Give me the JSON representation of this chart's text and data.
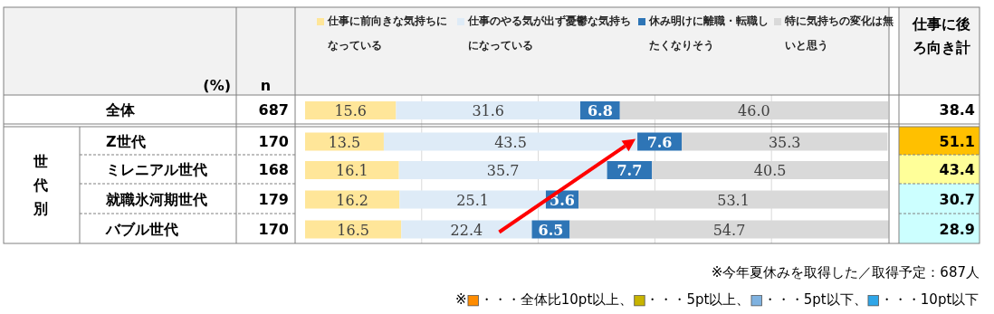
{
  "chart_data": {
    "type": "bar",
    "orientation": "horizontal",
    "stacked": true,
    "categories": [
      "全体",
      "Z世代",
      "ミレニアル世代",
      "就職氷河期世代",
      "バブル世代"
    ],
    "series": [
      {
        "name": "仕事に前向きな気持ちになっている",
        "color": "#ffe699",
        "values": [
          15.6,
          13.5,
          16.1,
          16.2,
          16.5
        ]
      },
      {
        "name": "仕事のやる気が出ず憂鬱な気持ちになっている",
        "color": "#deebf7",
        "values": [
          31.6,
          43.5,
          35.7,
          25.1,
          22.4
        ]
      },
      {
        "name": "休み明けに離職・転職したくなりそう",
        "color": "#2e75b6",
        "values": [
          6.8,
          7.6,
          7.7,
          5.6,
          6.5
        ]
      },
      {
        "name": "特に気持ちの変化は無いと思う",
        "color": "#d9d9d9",
        "values": [
          46.0,
          35.3,
          40.5,
          53.1,
          54.7
        ],
        "value_labels": [
          "46.0",
          "35.3",
          "40.5",
          "53.1",
          "54.7"
        ]
      }
    ],
    "xlim": [
      0,
      100
    ],
    "xticks": [
      {
        "value": 20,
        "label": null
      },
      {
        "value": 40,
        "label": null
      },
      {
        "value": 60,
        "label": null
      },
      {
        "value": 80,
        "label": null
      }
    ],
    "grid": "x",
    "data_labels": true,
    "legend": "top",
    "annotations": [
      "(%)",
      "n",
      "世代別",
      "仕事に後ろ向き計",
      "※今年夏休みを取得した／取得予定：687人",
      "※■・・・全体比10pt以上、■・・・5pt以上、■・・・5pt以下、■・・・10pt以下",
      "687",
      "170",
      "168",
      "179",
      "170",
      "38.4",
      "51.1",
      "43.4",
      "30.7",
      "28.9"
    ]
  }
}
